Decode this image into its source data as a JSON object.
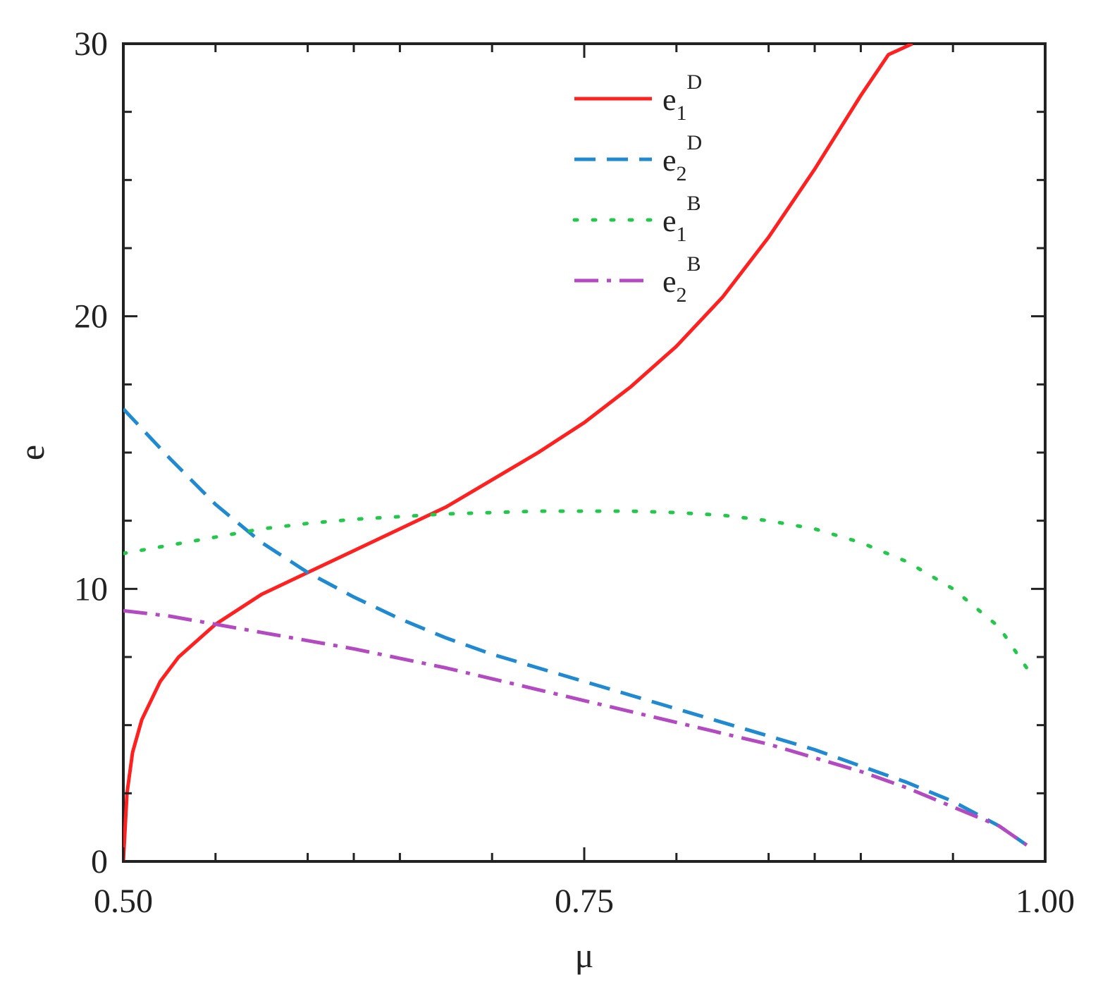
{
  "chart_data": {
    "type": "line",
    "title": "",
    "xlabel": "μ",
    "ylabel": "e",
    "xlim": [
      0.5,
      1.0
    ],
    "ylim": [
      0,
      30
    ],
    "grid": false,
    "legend_position": "top-center",
    "x_tick_labels": [
      "0.50",
      "0.75",
      "1.00"
    ],
    "y_tick_labels": [
      "0",
      "10",
      "20",
      "30"
    ],
    "series": [
      {
        "name": "e1D",
        "label_base": "e",
        "label_sub": "1",
        "label_sup": "D",
        "color": "#ff2020",
        "line_style": "solid",
        "x": [
          0.5,
          0.502,
          0.505,
          0.51,
          0.52,
          0.53,
          0.55,
          0.575,
          0.6,
          0.625,
          0.65,
          0.675,
          0.7,
          0.725,
          0.75,
          0.775,
          0.8,
          0.825,
          0.85,
          0.875,
          0.9,
          0.915,
          0.928
        ],
        "y": [
          0,
          2.5,
          4.0,
          5.2,
          6.6,
          7.5,
          8.7,
          9.8,
          10.6,
          11.4,
          12.2,
          13.0,
          14.0,
          15.0,
          16.1,
          17.4,
          18.9,
          20.7,
          22.9,
          25.4,
          28.1,
          29.6,
          30.0
        ]
      },
      {
        "name": "e2D",
        "label_base": "e",
        "label_sub": "2",
        "label_sup": "D",
        "color": "#1f8ad1",
        "line_style": "dashed",
        "x": [
          0.5,
          0.525,
          0.55,
          0.575,
          0.6,
          0.625,
          0.65,
          0.675,
          0.7,
          0.725,
          0.75,
          0.775,
          0.8,
          0.825,
          0.85,
          0.875,
          0.9,
          0.925,
          0.95,
          0.975,
          0.99
        ],
        "y": [
          16.6,
          14.8,
          13.1,
          11.7,
          10.6,
          9.7,
          8.9,
          8.2,
          7.6,
          7.1,
          6.6,
          6.1,
          5.6,
          5.1,
          4.6,
          4.1,
          3.5,
          2.9,
          2.2,
          1.3,
          0.6
        ]
      },
      {
        "name": "e1B",
        "label_base": "e",
        "label_sub": "1",
        "label_sup": "B",
        "color": "#22c84a",
        "line_style": "dotted",
        "x": [
          0.5,
          0.525,
          0.55,
          0.575,
          0.6,
          0.625,
          0.65,
          0.675,
          0.7,
          0.725,
          0.75,
          0.775,
          0.8,
          0.825,
          0.85,
          0.875,
          0.9,
          0.925,
          0.95,
          0.975,
          0.99
        ],
        "y": [
          11.3,
          11.6,
          11.9,
          12.2,
          12.4,
          12.55,
          12.65,
          12.75,
          12.8,
          12.85,
          12.85,
          12.85,
          12.8,
          12.7,
          12.5,
          12.2,
          11.7,
          11.0,
          10.0,
          8.6,
          7.1
        ]
      },
      {
        "name": "e2B",
        "label_base": "e",
        "label_sub": "2",
        "label_sup": "B",
        "color": "#b44ac2",
        "line_style": "dashdot",
        "x": [
          0.5,
          0.525,
          0.55,
          0.575,
          0.6,
          0.625,
          0.65,
          0.675,
          0.7,
          0.725,
          0.75,
          0.775,
          0.8,
          0.825,
          0.85,
          0.875,
          0.9,
          0.925,
          0.95,
          0.975,
          0.99
        ],
        "y": [
          9.2,
          9.0,
          8.7,
          8.4,
          8.1,
          7.8,
          7.45,
          7.1,
          6.7,
          6.3,
          5.9,
          5.5,
          5.1,
          4.7,
          4.3,
          3.8,
          3.3,
          2.7,
          2.0,
          1.3,
          0.6
        ]
      }
    ]
  }
}
